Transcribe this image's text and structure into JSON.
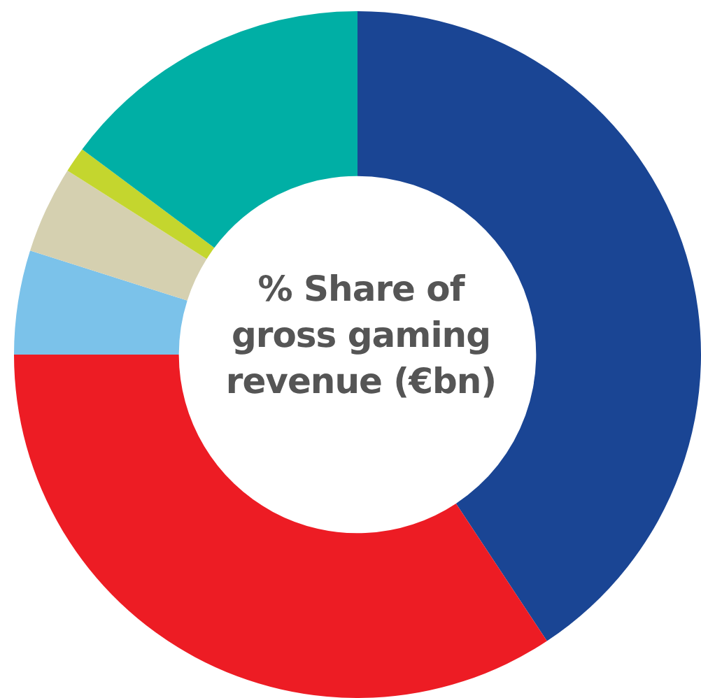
{
  "chart_data": {
    "type": "donut",
    "title": "% Share of gross gaming revenue (€bn)",
    "categories": [
      null,
      null,
      null,
      null,
      null,
      null
    ],
    "values": [
      40.7,
      34.3,
      4.9,
      4.1,
      1.2,
      14.8
    ],
    "colors": [
      "#1a4594",
      "#ed1c24",
      "#7bc2ea",
      "#d5d0b0",
      "#c4d62e",
      "#00afa5"
    ],
    "legend": false
  }
}
